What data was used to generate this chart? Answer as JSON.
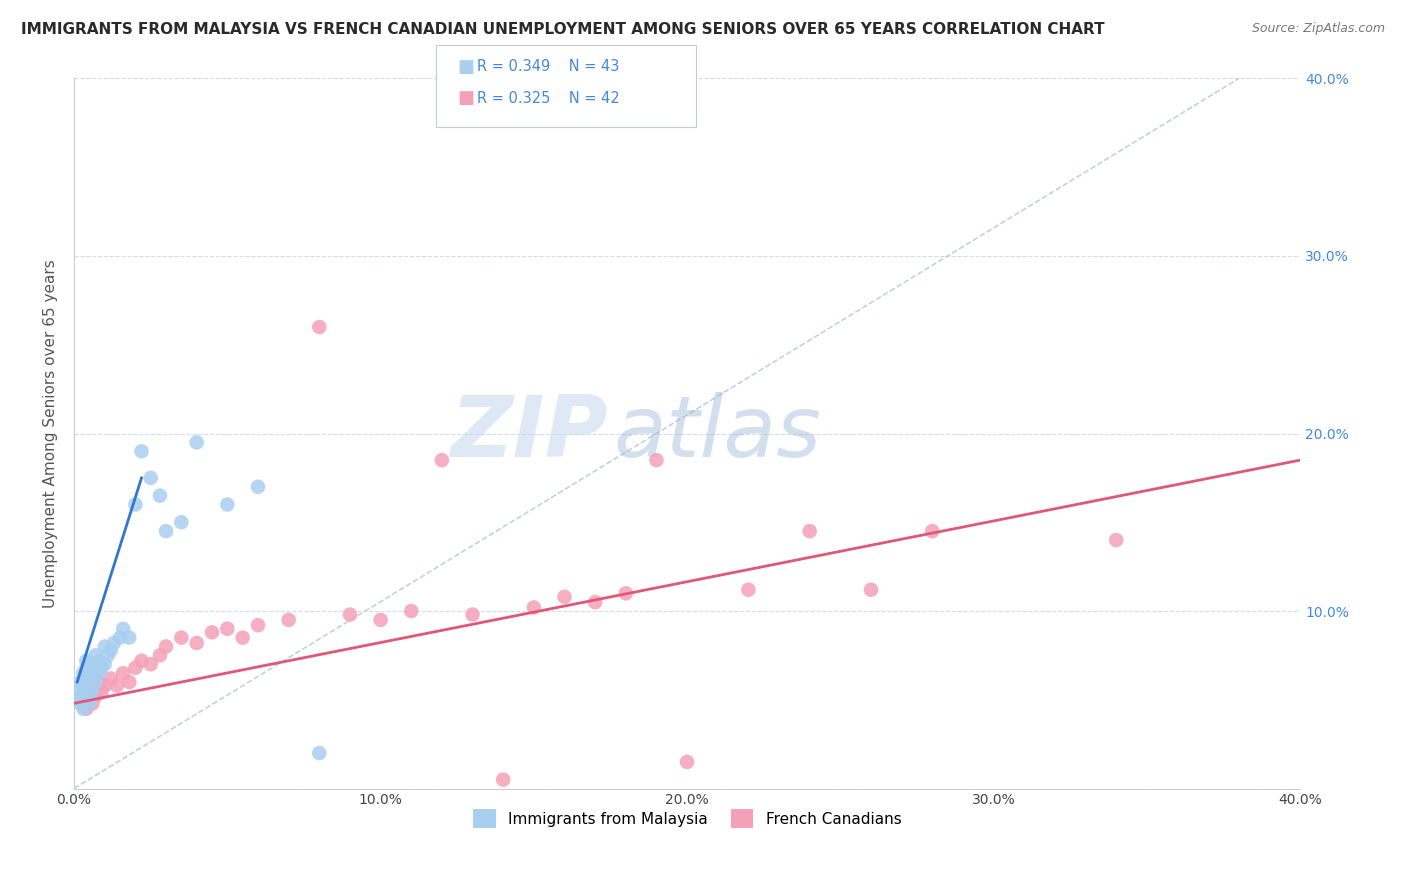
{
  "title": "IMMIGRANTS FROM MALAYSIA VS FRENCH CANADIAN UNEMPLOYMENT AMONG SENIORS OVER 65 YEARS CORRELATION CHART",
  "source": "Source: ZipAtlas.com",
  "ylabel": "Unemployment Among Seniors over 65 years",
  "xlim": [
    0.0,
    0.4
  ],
  "ylim": [
    0.0,
    0.4
  ],
  "legend_blue_r": "0.349",
  "legend_blue_n": "43",
  "legend_pink_r": "0.325",
  "legend_pink_n": "42",
  "blue_scatter_color": "#a8cef0",
  "pink_scatter_color": "#f4a0b8",
  "blue_line_color": "#3377cc",
  "pink_line_color": "#e05878",
  "dashed_line_color": "#b8c8dc",
  "grid_color": "#d0dcea",
  "title_color": "#2a2a2a",
  "right_tick_color": "#4488dd",
  "watermark_zip": "ZIP",
  "watermark_atlas": "atlas",
  "figsize": [
    14.06,
    8.92
  ],
  "dpi": 100,
  "blue_x": [
    0.001,
    0.001,
    0.002,
    0.002,
    0.002,
    0.003,
    0.003,
    0.003,
    0.003,
    0.004,
    0.004,
    0.004,
    0.004,
    0.005,
    0.005,
    0.005,
    0.005,
    0.006,
    0.006,
    0.006,
    0.007,
    0.007,
    0.008,
    0.008,
    0.009,
    0.01,
    0.01,
    0.011,
    0.012,
    0.013,
    0.015,
    0.016,
    0.018,
    0.02,
    0.022,
    0.025,
    0.028,
    0.03,
    0.035,
    0.04,
    0.05,
    0.06,
    0.08
  ],
  "blue_y": [
    0.05,
    0.055,
    0.048,
    0.052,
    0.06,
    0.045,
    0.053,
    0.058,
    0.065,
    0.05,
    0.055,
    0.068,
    0.072,
    0.048,
    0.052,
    0.065,
    0.07,
    0.055,
    0.062,
    0.07,
    0.06,
    0.075,
    0.065,
    0.072,
    0.068,
    0.07,
    0.08,
    0.075,
    0.078,
    0.082,
    0.085,
    0.09,
    0.085,
    0.16,
    0.19,
    0.175,
    0.165,
    0.145,
    0.15,
    0.195,
    0.16,
    0.17,
    0.02
  ],
  "blue_line_x": [
    0.001,
    0.022
  ],
  "blue_line_y": [
    0.06,
    0.175
  ],
  "pink_x": [
    0.003,
    0.004,
    0.005,
    0.006,
    0.007,
    0.008,
    0.009,
    0.01,
    0.012,
    0.014,
    0.016,
    0.018,
    0.02,
    0.022,
    0.025,
    0.028,
    0.03,
    0.035,
    0.04,
    0.045,
    0.05,
    0.055,
    0.06,
    0.07,
    0.08,
    0.09,
    0.1,
    0.11,
    0.12,
    0.13,
    0.14,
    0.15,
    0.16,
    0.17,
    0.18,
    0.19,
    0.2,
    0.22,
    0.24,
    0.26,
    0.28,
    0.34
  ],
  "pink_y": [
    0.05,
    0.045,
    0.055,
    0.048,
    0.052,
    0.06,
    0.055,
    0.058,
    0.062,
    0.058,
    0.065,
    0.06,
    0.068,
    0.072,
    0.07,
    0.075,
    0.08,
    0.085,
    0.082,
    0.088,
    0.09,
    0.085,
    0.092,
    0.095,
    0.26,
    0.098,
    0.095,
    0.1,
    0.185,
    0.098,
    0.005,
    0.102,
    0.108,
    0.105,
    0.11,
    0.185,
    0.015,
    0.112,
    0.145,
    0.112,
    0.145,
    0.14
  ],
  "pink_line_x": [
    0.0,
    0.4
  ],
  "pink_line_y": [
    0.048,
    0.185
  ]
}
